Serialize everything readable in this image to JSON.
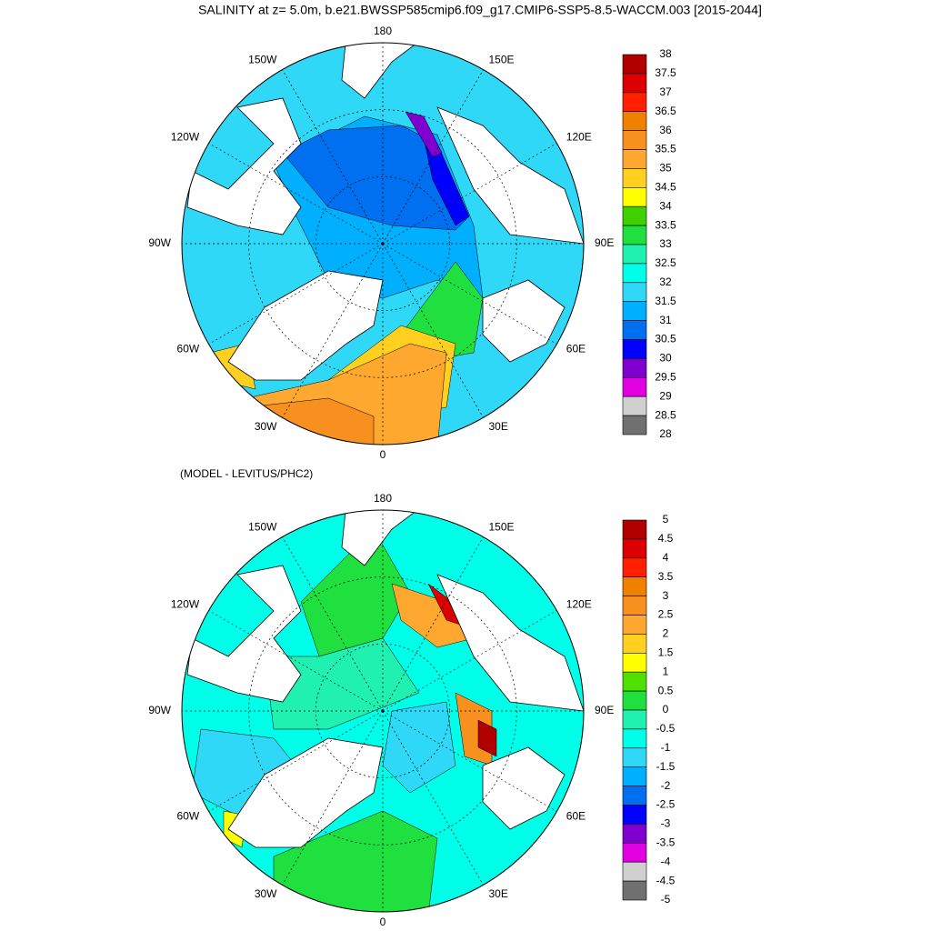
{
  "title": "SALINITY at z=   5.0m, b.e21.BWSSP585cmip6.f09_g17.CMIP6-SSP5-8.5-WACCM.003 [2015-2044]",
  "maps": [
    {
      "lon_labels": [
        "180",
        "150E",
        "120E",
        "90E",
        "60E",
        "30E",
        "0",
        "30W",
        "60W",
        "90W",
        "120W",
        "150W"
      ],
      "colorbar": {
        "labels": [
          38,
          37.5,
          37,
          36.5,
          36,
          35.5,
          35,
          34.5,
          34,
          33.5,
          33,
          32.5,
          32,
          31.5,
          31,
          30.5,
          30,
          29.5,
          29,
          28.5,
          28
        ],
        "colors": [
          "#b00000",
          "#dd0000",
          "#ff2000",
          "#f08000",
          "#f89020",
          "#ffa830",
          "#ffd020",
          "#ffff00",
          "#40d000",
          "#20e040",
          "#20f0b0",
          "#00ffe8",
          "#30d8f8",
          "#00b0ff",
          "#0070f0",
          "#0000ff",
          "#8000d0",
          "#e000e0",
          "#d0d0d0",
          "#707070"
        ]
      }
    },
    {
      "subtitle": "(MODEL - LEVITUS/PHC2)",
      "lon_labels": [
        "180",
        "150E",
        "120E",
        "90E",
        "60E",
        "30E",
        "0",
        "30W",
        "60W",
        "90W",
        "120W",
        "150W"
      ],
      "colorbar": {
        "labels": [
          5,
          4.5,
          4,
          3.5,
          3,
          2.5,
          2,
          1.5,
          1,
          0.5,
          0,
          -0.5,
          -1,
          -1.5,
          -2,
          -2.5,
          -3,
          -3.5,
          -4,
          -4.5,
          -5
        ],
        "colors": [
          "#b00000",
          "#dd0000",
          "#ff2000",
          "#f08000",
          "#f89020",
          "#ffa830",
          "#ffd020",
          "#ffff00",
          "#50e000",
          "#20e040",
          "#20f0b0",
          "#00ffe8",
          "#30d8f8",
          "#00b0ff",
          "#0070f0",
          "#0000ff",
          "#8000d0",
          "#e000e0",
          "#d0d0d0",
          "#707070"
        ]
      }
    }
  ]
}
